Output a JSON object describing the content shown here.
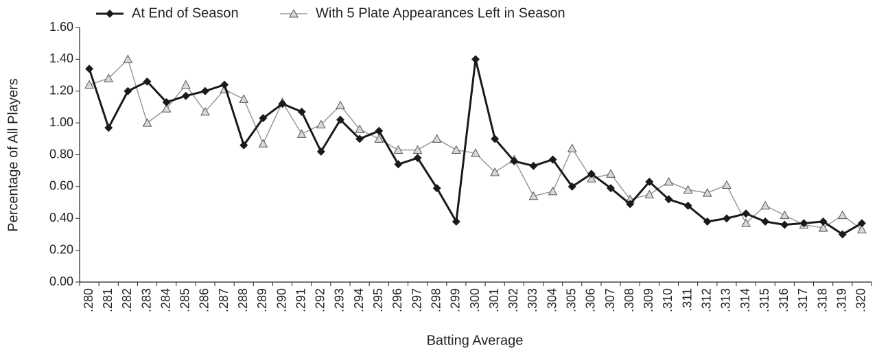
{
  "chart_data": {
    "type": "line",
    "x_label": "Batting Average",
    "y_label": "Percentage of All Players",
    "categories": [
      ".280",
      ".281",
      ".282",
      ".283",
      ".284",
      ".285",
      ".286",
      ".287",
      ".288",
      ".289",
      ".290",
      ".291",
      ".292",
      ".293",
      ".294",
      ".295",
      ".296",
      ".297",
      ".298",
      ".299",
      ".300",
      ".301",
      ".302",
      ".303",
      ".304",
      ".305",
      ".306",
      ".307",
      ".308",
      ".309",
      ".310",
      ".311",
      ".312",
      ".313",
      ".314",
      ".315",
      ".316",
      ".317",
      ".318",
      ".319",
      ".320"
    ],
    "series": [
      {
        "name": "At End of Season",
        "color": "#1a1a1a",
        "marker": "diamond",
        "values": [
          1.34,
          0.97,
          1.2,
          1.26,
          1.13,
          1.17,
          1.2,
          1.24,
          0.86,
          1.03,
          1.12,
          1.07,
          0.82,
          1.02,
          0.9,
          0.95,
          0.74,
          0.78,
          0.59,
          0.38,
          1.4,
          0.9,
          0.76,
          0.73,
          0.77,
          0.6,
          0.68,
          0.59,
          0.49,
          0.63,
          0.52,
          0.48,
          0.38,
          0.4,
          0.43,
          0.38,
          0.36,
          0.37,
          0.38,
          0.3,
          0.37
        ]
      },
      {
        "name": "With 5 Plate Appearances Left in Season",
        "color": "#999999",
        "marker": "triangle",
        "values": [
          1.24,
          1.28,
          1.4,
          1.0,
          1.09,
          1.24,
          1.07,
          1.21,
          1.15,
          0.87,
          1.13,
          0.93,
          0.99,
          1.11,
          0.96,
          0.9,
          0.83,
          0.83,
          0.9,
          0.83,
          0.81,
          0.69,
          0.77,
          0.54,
          0.57,
          0.84,
          0.65,
          0.68,
          0.52,
          0.55,
          0.63,
          0.58,
          0.56,
          0.61,
          0.37,
          0.48,
          0.42,
          0.36,
          0.34,
          0.42,
          0.33
        ]
      }
    ],
    "ylim": [
      0,
      1.6
    ],
    "yticks": [
      {
        "value": 0,
        "label": "0.00"
      },
      {
        "value": 0.2,
        "label": "0.20"
      },
      {
        "value": 0.4,
        "label": "0.40"
      },
      {
        "value": 0.6,
        "label": "0.60"
      },
      {
        "value": 0.8,
        "label": "0.80"
      },
      {
        "value": 1.0,
        "label": "1.00"
      },
      {
        "value": 1.2,
        "label": "1.20"
      },
      {
        "value": 1.4,
        "label": "1.40"
      },
      {
        "value": 1.6,
        "label": "1.60"
      }
    ],
    "legend": "top",
    "grid": false
  }
}
